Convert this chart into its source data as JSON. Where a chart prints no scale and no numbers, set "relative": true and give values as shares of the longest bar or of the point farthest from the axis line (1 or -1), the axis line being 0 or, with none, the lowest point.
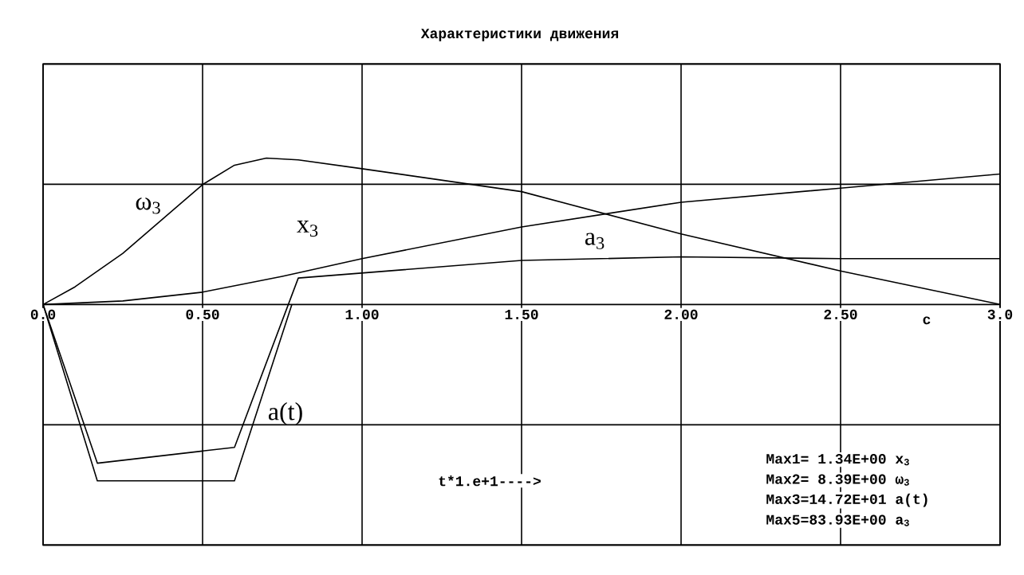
{
  "chart_data": {
    "type": "line",
    "title": "Характеристики движения",
    "xlabel": "c",
    "relative": true,
    "grid": true,
    "legend": false,
    "marker": "none",
    "line_style": "solid",
    "xlim": [
      0,
      3.0
    ],
    "xticks": [
      {
        "value": 0,
        "label": "0.0"
      },
      {
        "value": 0.5,
        "label": "0.50"
      },
      {
        "value": 1.0,
        "label": "1.00"
      },
      {
        "value": 1.5,
        "label": "1.50"
      },
      {
        "value": 2.0,
        "label": "2.00"
      },
      {
        "value": 2.5,
        "label": "2.50"
      },
      {
        "value": 3.0,
        "label": "3.0"
      }
    ],
    "series": [
      {
        "name": "ω$_{3}$",
        "color": "#000000",
        "x": [
          0,
          0.1,
          0.25,
          0.5,
          0.6,
          0.7,
          0.8,
          1.0,
          1.5,
          2.0,
          2.5,
          3.0
        ],
        "values": [
          0,
          0.1,
          0.29,
          0.68,
          0.79,
          0.83,
          0.82,
          0.77,
          0.64,
          0.4,
          0.19,
          0
        ]
      },
      {
        "name": "x$_{3}$",
        "color": "#000000",
        "x": [
          0,
          0.25,
          0.5,
          0.75,
          1.0,
          1.5,
          2.0,
          2.5,
          3.0
        ],
        "values": [
          0,
          0.02,
          0.07,
          0.16,
          0.26,
          0.44,
          0.58,
          0.66,
          0.74
        ]
      },
      {
        "name": "a$_{3}$",
        "color": "#000000",
        "x": [
          0,
          0.17,
          0.6,
          0.8,
          1.5,
          2.0,
          2.5,
          3.0
        ],
        "values": [
          0,
          -0.9,
          -0.81,
          0.15,
          0.25,
          0.27,
          0.26,
          0.26
        ]
      },
      {
        "name": "a(t)",
        "color": "#000000",
        "x": [
          0,
          0.17,
          0.6,
          0.78
        ],
        "values": [
          0,
          -1.0,
          -1.0,
          0
        ]
      }
    ],
    "annotations": [
      "t*1.e+1---->",
      "Max1= 1.34E+00 x$_{3}$",
      "Max2= 8.39E+00 ω$_{3}$",
      "Max3=14.72E+01 a(t)",
      "Max5=83.93E+00 a$_{3}$"
    ]
  }
}
